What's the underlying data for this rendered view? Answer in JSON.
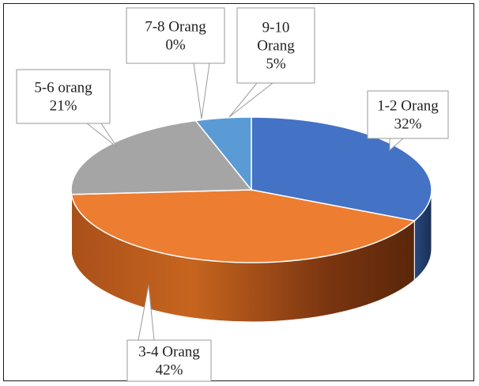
{
  "chart_data": {
    "type": "pie",
    "three_d": true,
    "title": "",
    "legend": "none",
    "start_angle_deg": 0,
    "direction": "clockwise",
    "slices": [
      {
        "lines": [
          "1-2 Orang",
          "32%"
        ],
        "value": 32,
        "color": "#4472C4"
      },
      {
        "lines": [
          "3-4 Orang",
          "42%"
        ],
        "value": 42,
        "color": "#ED7D31"
      },
      {
        "lines": [
          "5-6 orang",
          "21%"
        ],
        "value": 21,
        "color": "#A5A5A5"
      },
      {
        "lines": [
          "7-8 Orang",
          "0%"
        ],
        "value": 0,
        "color": "#FFC000"
      },
      {
        "lines": [
          "9-10",
          "Orang",
          "5%"
        ],
        "value": 5,
        "color": "#5B9BD5"
      }
    ]
  }
}
